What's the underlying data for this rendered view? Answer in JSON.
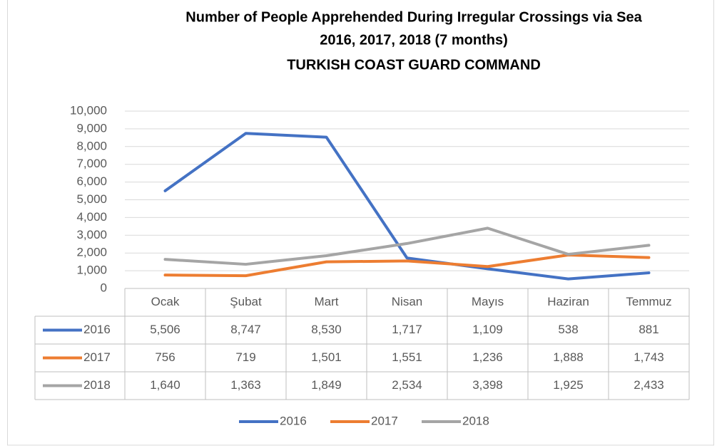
{
  "chart_data": {
    "type": "line",
    "title": [
      "Number of People Apprehended During Irregular Crossings via Sea",
      "2016, 2017, 2018 (7 months)",
      "TURKISH COAST GUARD COMMAND"
    ],
    "categories": [
      "Ocak",
      "Şubat",
      "Mart",
      "Nisan",
      "Mayıs",
      "Haziran",
      "Temmuz"
    ],
    "series": [
      {
        "name": "2016",
        "color": "#4472c4",
        "values": [
          5506,
          8747,
          8530,
          1717,
          1109,
          538,
          881
        ],
        "value_labels": [
          "5,506",
          "8,747",
          "8,530",
          "1,717",
          "1,109",
          "538",
          "881"
        ]
      },
      {
        "name": "2017",
        "color": "#ed7d31",
        "values": [
          756,
          719,
          1501,
          1551,
          1236,
          1888,
          1743
        ],
        "value_labels": [
          "756",
          "719",
          "1,501",
          "1,551",
          "1,236",
          "1,888",
          "1,743"
        ]
      },
      {
        "name": "2018",
        "color": "#a5a5a5",
        "values": [
          1640,
          1363,
          1849,
          2534,
          3398,
          1925,
          2433
        ],
        "value_labels": [
          "1,640",
          "1,363",
          "1,849",
          "2,534",
          "3,398",
          "1,925",
          "2,433"
        ]
      }
    ],
    "ylim": [
      0,
      10000
    ],
    "yticks": [
      0,
      {
        "value": 1000,
        "label": "1,000"
      },
      {
        "value": 2000,
        "label": "2,000"
      },
      {
        "value": 3000,
        "label": "3,000"
      },
      {
        "value": 4000,
        "label": "4,000"
      },
      {
        "value": 5000,
        "label": "5,000"
      },
      {
        "value": 6000,
        "label": "6,000"
      },
      {
        "value": 7000,
        "label": "7,000"
      },
      {
        "value": 8000,
        "label": "8,000"
      },
      {
        "value": 9000,
        "label": "9,000"
      },
      {
        "value": 10000,
        "label": "10,000"
      }
    ],
    "grid": true,
    "legend": "bottom"
  }
}
